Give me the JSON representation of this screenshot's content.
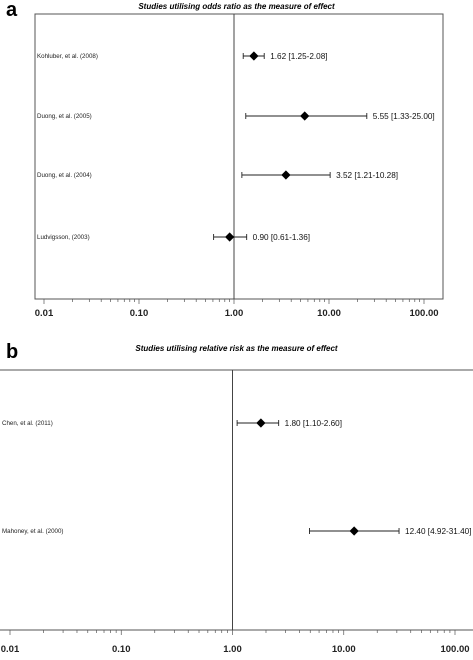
{
  "chart_data": [
    {
      "type": "forest",
      "panel_label": "a",
      "title": "Studies utilising odds ratio as the measure of effect",
      "x_scale": "log",
      "xlim": [
        0.01,
        100
      ],
      "xticks": [
        "0.01",
        "0.10",
        "1.00",
        "10.00",
        "100.00"
      ],
      "reference_line": 1,
      "box": true,
      "studies": [
        {
          "label": "Kohluber, et al. (2008)",
          "estimate": 1.62,
          "ci_low": 1.25,
          "ci_high": 2.08,
          "ci_text": "1.62 [1.25-2.08]"
        },
        {
          "label": "Duong, et al. (2005)",
          "estimate": 5.55,
          "ci_low": 1.33,
          "ci_high": 25.0,
          "ci_text": "5.55 [1.33-25.00]"
        },
        {
          "label": "Duong, et al. (2004)",
          "estimate": 3.52,
          "ci_low": 1.21,
          "ci_high": 10.28,
          "ci_text": "3.52 [1.21-10.28]"
        },
        {
          "label": "Ludvigsson,  (2003)",
          "estimate": 0.9,
          "ci_low": 0.61,
          "ci_high": 1.36,
          "ci_text": "0.90 [0.61-1.36]"
        }
      ]
    },
    {
      "type": "forest",
      "panel_label": "b",
      "title": "Studies utilising relative risk as the measure of effect",
      "x_scale": "log",
      "xlim": [
        0.01,
        100
      ],
      "xticks": [
        "0.01",
        "0.10",
        "1.00",
        "10.00",
        "100.00"
      ],
      "reference_line": 1,
      "box": false,
      "studies": [
        {
          "label": "Chen, et al. (2011)",
          "estimate": 1.8,
          "ci_low": 1.1,
          "ci_high": 2.6,
          "ci_text": "1.80 [1.10-2.60]"
        },
        {
          "label": "Mahoney, et al. (2000)",
          "estimate": 12.4,
          "ci_low": 4.92,
          "ci_high": 31.4,
          "ci_text": "12.40 [4.92-31.40]"
        }
      ]
    }
  ]
}
